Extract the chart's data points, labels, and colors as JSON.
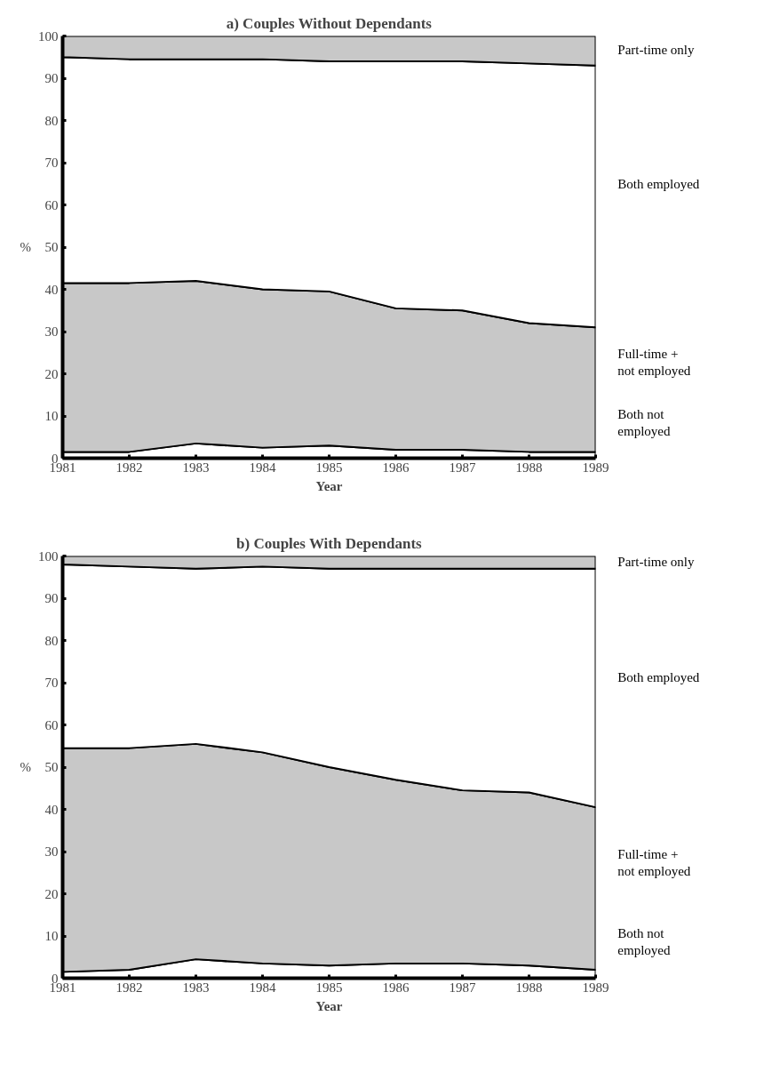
{
  "chart_data": [
    {
      "type": "area",
      "title": "a) Couples Without Dependants",
      "xlabel": "Year",
      "ylabel": "%",
      "stacked": true,
      "x": [
        1981,
        1982,
        1983,
        1984,
        1985,
        1986,
        1987,
        1988,
        1989
      ],
      "xlim": [
        1981,
        1989
      ],
      "ylim": [
        0,
        100
      ],
      "xticks": [
        1981,
        1982,
        1983,
        1984,
        1985,
        1986,
        1987,
        1988,
        1989
      ],
      "yticks": [
        0,
        10,
        20,
        30,
        40,
        50,
        60,
        70,
        80,
        90,
        100
      ],
      "series": [
        {
          "name": "Both not employed",
          "color": "#ffffff",
          "values": [
            1.5,
            1.5,
            3.5,
            2.5,
            3,
            2,
            2,
            1.5,
            1.5
          ]
        },
        {
          "name": "Full-time + not employed",
          "color": "#c8c8c8",
          "values": [
            40,
            40,
            38.5,
            37.5,
            36.5,
            33.5,
            33,
            30.5,
            29.5
          ]
        },
        {
          "name": "Both employed",
          "color": "#ffffff",
          "values": [
            53.5,
            53,
            52.5,
            54.5,
            54.5,
            58.5,
            59,
            61.5,
            62
          ]
        },
        {
          "name": "Part-time only",
          "color": "#c8c8c8",
          "values": [
            5,
            5.5,
            5.5,
            5.5,
            6,
            6,
            6,
            6.5,
            7
          ]
        }
      ]
    },
    {
      "type": "area",
      "title": "b) Couples With Dependants",
      "xlabel": "Year",
      "ylabel": "%",
      "stacked": true,
      "x": [
        1981,
        1982,
        1983,
        1984,
        1985,
        1986,
        1987,
        1988,
        1989
      ],
      "xlim": [
        1981,
        1989
      ],
      "ylim": [
        0,
        100
      ],
      "xticks": [
        1981,
        1982,
        1983,
        1984,
        1985,
        1986,
        1987,
        1988,
        1989
      ],
      "yticks": [
        0,
        10,
        20,
        30,
        40,
        50,
        60,
        70,
        80,
        90,
        100
      ],
      "series": [
        {
          "name": "Both not employed",
          "color": "#ffffff",
          "values": [
            1.5,
            2,
            4.5,
            3.5,
            3,
            3.5,
            3.5,
            3,
            2
          ]
        },
        {
          "name": "Full-time + not employed",
          "color": "#c8c8c8",
          "values": [
            53,
            52.5,
            51,
            50,
            47,
            43.5,
            41,
            41,
            38.5
          ]
        },
        {
          "name": "Both employed",
          "color": "#ffffff",
          "values": [
            43.5,
            43,
            41.5,
            44,
            47,
            50,
            52.5,
            53,
            56.5
          ]
        },
        {
          "name": "Part-time only",
          "color": "#c8c8c8",
          "values": [
            2,
            2.5,
            3,
            2.5,
            3,
            3,
            3,
            3,
            3
          ]
        }
      ]
    }
  ]
}
